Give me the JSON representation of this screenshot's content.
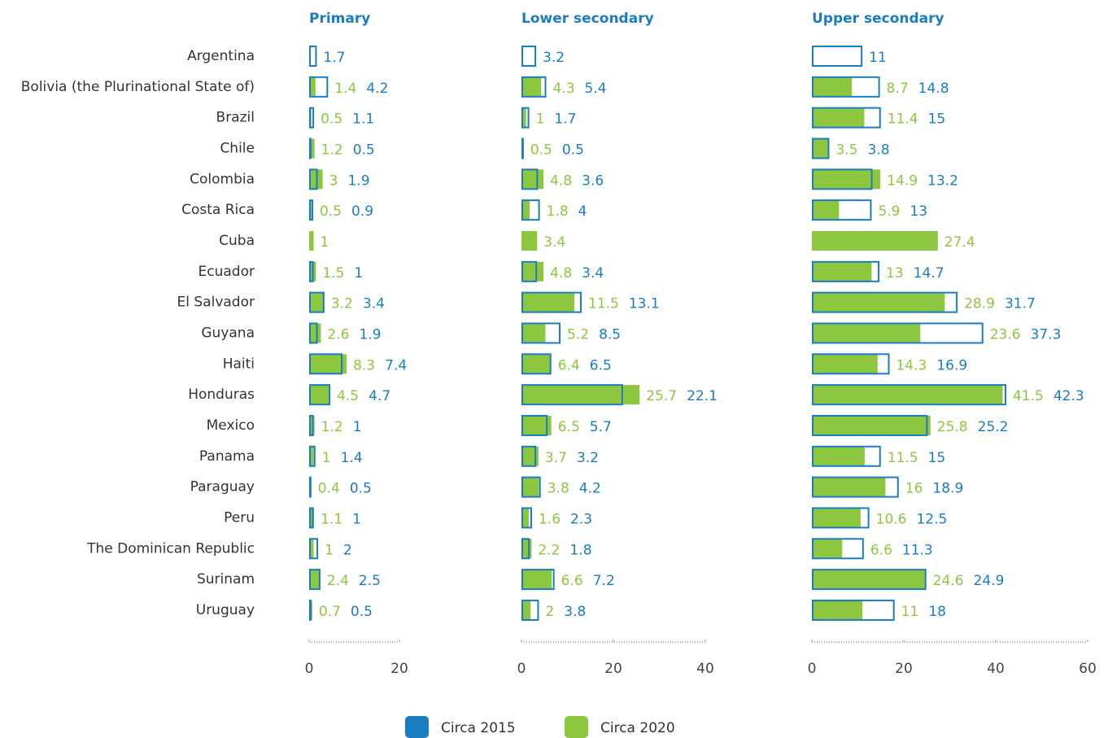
{
  "chart_data": {
    "type": "bar",
    "orientation": "horizontal",
    "categories": [
      "Argentina",
      "Bolivia (the Plurinational State of)",
      "Brazil",
      "Chile",
      "Colombia",
      "Costa Rica",
      "Cuba",
      "Ecuador",
      "El Salvador",
      "Guyana",
      "Haiti",
      "Honduras",
      "Mexico",
      "Panama",
      "Paraguay",
      "Peru",
      "The Dominican Republic",
      "Surinam",
      "Uruguay"
    ],
    "series": [
      {
        "name": "Circa 2015",
        "color": "#1a7dc2"
      },
      {
        "name": "Circa 2020",
        "color": "#8dc63f"
      }
    ],
    "panels": [
      {
        "title": "Primary",
        "xlim": [
          0,
          20
        ],
        "xticks": [
          0,
          20
        ],
        "series": [
          {
            "values": [
              1.7,
              4.2,
              1.1,
              0.5,
              1.9,
              0.9,
              null,
              1.0,
              3.4,
              1.9,
              7.4,
              4.7,
              1.0,
              1.4,
              0.5,
              1.0,
              2.0,
              2.5,
              0.5
            ]
          },
          {
            "values": [
              null,
              1.4,
              0.5,
              1.2,
              3.0,
              0.5,
              1.0,
              1.5,
              3.2,
              2.6,
              8.3,
              4.5,
              1.2,
              1.0,
              0.4,
              1.1,
              1.0,
              2.4,
              0.7
            ]
          }
        ]
      },
      {
        "title": "Lower secondary",
        "xlim": [
          0,
          40
        ],
        "xticks": [
          0,
          20,
          40
        ],
        "series": [
          {
            "values": [
              3.2,
              5.4,
              1.7,
              0.5,
              3.6,
              4.0,
              null,
              3.4,
              13.1,
              8.5,
              6.5,
              22.1,
              5.7,
              3.2,
              4.2,
              2.3,
              1.8,
              7.2,
              3.8
            ]
          },
          {
            "values": [
              null,
              4.3,
              1.0,
              0.5,
              4.8,
              1.8,
              3.4,
              4.8,
              11.5,
              5.2,
              6.4,
              25.7,
              6.5,
              3.7,
              3.8,
              1.6,
              2.2,
              6.6,
              2.0
            ]
          }
        ]
      },
      {
        "title": "Upper secondary",
        "xlim": [
          0,
          60
        ],
        "xticks": [
          0,
          20,
          40,
          60
        ],
        "series": [
          {
            "values": [
              11.0,
              14.8,
              15.0,
              3.8,
              13.2,
              13.0,
              null,
              14.7,
              31.7,
              37.3,
              16.9,
              42.3,
              25.2,
              15.0,
              18.9,
              12.5,
              11.3,
              24.9,
              18.0
            ]
          },
          {
            "values": [
              null,
              8.7,
              11.4,
              3.5,
              14.9,
              5.9,
              27.4,
              13.0,
              28.9,
              23.6,
              14.3,
              41.5,
              25.8,
              11.5,
              16.0,
              10.6,
              6.6,
              24.6,
              11.0
            ]
          }
        ]
      }
    ]
  }
}
